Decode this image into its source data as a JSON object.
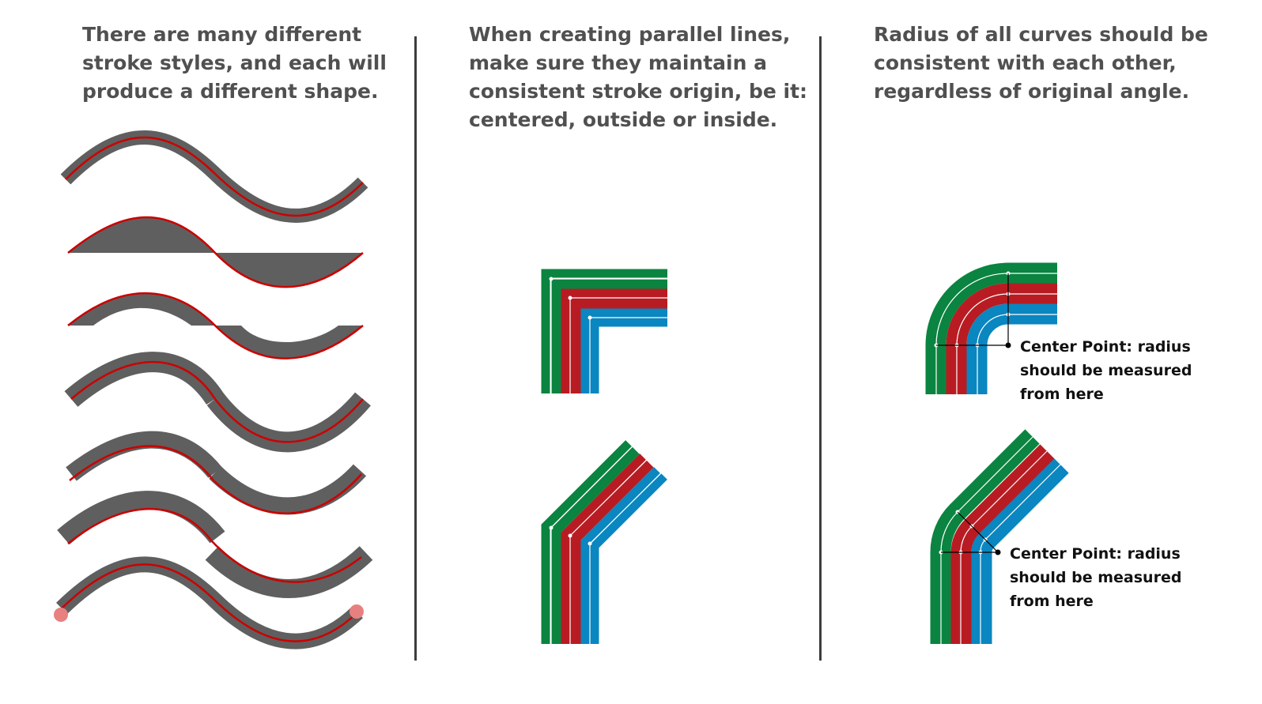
{
  "captions": {
    "stroke_styles": "There are many different\nstroke styles, and each will\nproduce a different shape.",
    "parallel_lines": "When creating parallel lines,\nmake sure they maintain a\nconsistent stroke origin, be it:\ncentered, outside or inside.",
    "radius": "Radius of all curves should be\nconsistent with each other,\nregardless of original angle."
  },
  "annotations": {
    "center_point_top": "Center Point: radius\nshould be measured\nfrom here",
    "center_point_bottom": "Center Point: radius\nshould be measured\nfrom here"
  },
  "colors": {
    "stroke_fill": "#5f5f5f",
    "path_line": "#cc0000",
    "green": "#0a8440",
    "red": "#b81c22",
    "blue": "#0a86c0",
    "divider": "#3d3d3d",
    "cap_marker": "#e88080"
  }
}
